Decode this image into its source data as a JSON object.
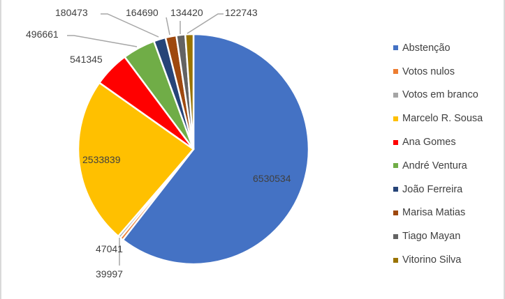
{
  "chart_data": {
    "type": "pie",
    "title": "",
    "legend_position": "right",
    "categories": [
      "Abstenção",
      "Votos nulos",
      "Votos em branco",
      "Marcelo R. Sousa",
      "Ana Gomes",
      "André Ventura",
      "João Ferreira",
      "Marisa Matias",
      "Tiago Mayan",
      "Vitorino Silva"
    ],
    "values": [
      6530534,
      47041,
      39997,
      2533839,
      541345,
      496661,
      180473,
      164690,
      134420,
      122743
    ],
    "colors": [
      "#4472C4",
      "#ED7D31",
      "#A5A5A5",
      "#FFC000",
      "#FF0000",
      "#70AD47",
      "#264478",
      "#9E480E",
      "#636363",
      "#997300"
    ],
    "data_labels": [
      "6530534",
      "47041",
      "39997",
      "2533839",
      "541345",
      "496661",
      "180473",
      "164690",
      "134420",
      "122743"
    ],
    "start_angle_deg": 0,
    "direction": "clockwise"
  },
  "legend": {
    "items": [
      {
        "label": "Abstenção",
        "color": "#4472C4"
      },
      {
        "label": "Votos nulos",
        "color": "#ED7D31"
      },
      {
        "label": "Votos em branco",
        "color": "#A5A5A5"
      },
      {
        "label": "Marcelo R. Sousa",
        "color": "#FFC000"
      },
      {
        "label": "Ana Gomes",
        "color": "#FF0000"
      },
      {
        "label": "André Ventura",
        "color": "#70AD47"
      },
      {
        "label": "João Ferreira",
        "color": "#264478"
      },
      {
        "label": "Marisa Matias",
        "color": "#9E480E"
      },
      {
        "label": "Tiago Mayan",
        "color": "#636363"
      },
      {
        "label": "Vitorino Silva",
        "color": "#997300"
      }
    ]
  }
}
